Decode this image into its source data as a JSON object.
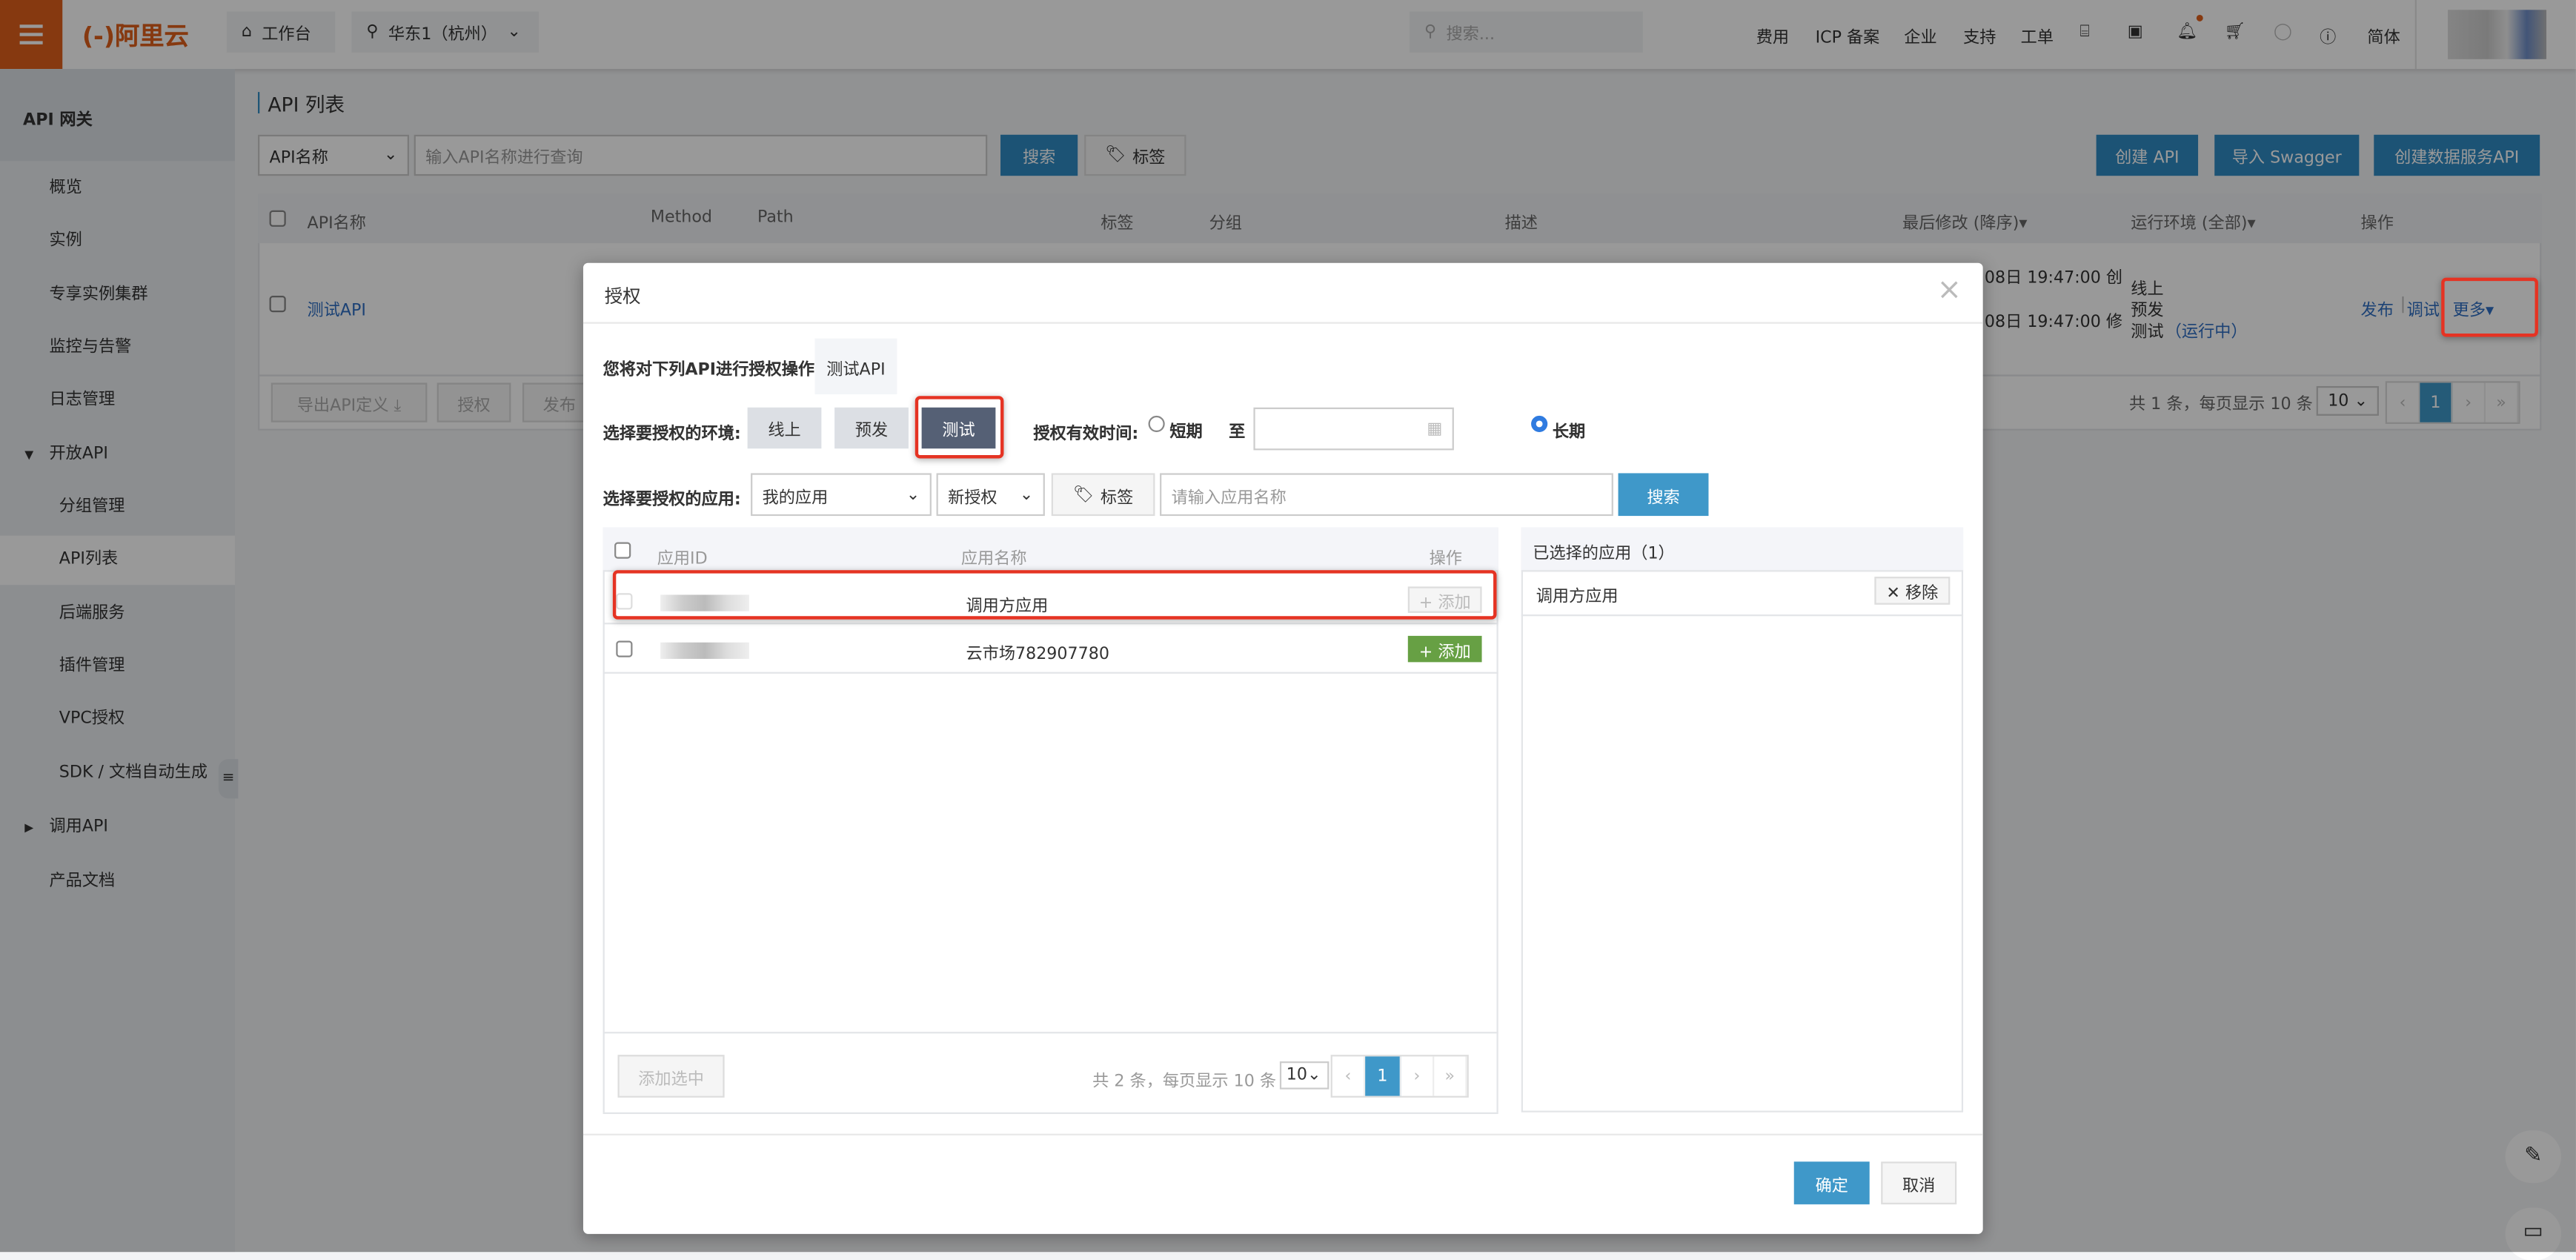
{
  "topbar": {
    "logo": "(-)阿里云",
    "workbench": "工作台",
    "region": "华东1（杭州）",
    "search_placeholder": "搜索...",
    "nav": [
      "费用",
      "ICP 备案",
      "企业",
      "支持",
      "工单"
    ],
    "lang": "简体"
  },
  "sidebar": {
    "title": "API 网关",
    "items": [
      "概览",
      "实例",
      "专享实例集群",
      "监控与告警",
      "日志管理",
      "开放API",
      "分组管理",
      "API列表",
      "后端服务",
      "插件管理",
      "VPC授权",
      "SDK / 文档自动生成",
      "调用API",
      "产品文档"
    ]
  },
  "main": {
    "title": "API 列表",
    "filter_select": "API名称",
    "search_placeholder": "输入API名称进行查询",
    "search": "搜索",
    "tag": "标签",
    "create_api": "创建 API",
    "import_swagger": "导入 Swagger",
    "create_data_api": "创建数据服务API",
    "columns": [
      "API名称",
      "Method",
      "Path",
      "标签",
      "分组",
      "描述",
      "最后修改 (降序)▾",
      "运行环境 (全部)▾",
      "操作"
    ],
    "row": {
      "name": "测试API",
      "time1": "08日 19:47:00 创",
      "time2": "08日 19:47:00 修",
      "env": [
        "线上",
        "预发",
        "测试"
      ],
      "running": "（运行中）",
      "actions": [
        "发布",
        "调试",
        "更多▾"
      ]
    },
    "footer_buttons": [
      "导出API定义 ⤓",
      "授权",
      "发布"
    ],
    "pagination_text": "共 1 条，每页显示 10 条",
    "page_size": "10",
    "page": "1"
  },
  "modal": {
    "title": "授权",
    "intro_label": "您将对下列API进行授权操作:",
    "api_tag": "测试API",
    "env_label": "选择要授权的环境:",
    "envs": [
      "线上",
      "预发",
      "测试"
    ],
    "selected_env": "测试",
    "validity_label": "授权有效时间:",
    "short": "短期",
    "to": "至",
    "long": "长期",
    "validity_selected": "长期",
    "app_label": "选择要授权的应用:",
    "app_scope": "我的应用",
    "auth_type": "新授权",
    "tag": "标签",
    "app_placeholder": "请输入应用名称",
    "search": "搜索",
    "table": {
      "columns": [
        "应用ID",
        "应用名称",
        "操作"
      ],
      "rows": [
        {
          "name": "调用方应用",
          "action": "+ 添加",
          "disabled": true
        },
        {
          "name": "云市场782907780",
          "action": "+ 添加",
          "disabled": false
        }
      ],
      "add_selected": "添加选中",
      "pagination_text": "共 2 条，每页显示 10 条",
      "page_size": "10",
      "page": "1"
    },
    "selected": {
      "title": "已选择的应用（1）",
      "items": [
        {
          "name": "调用方应用",
          "remove": "✕ 移除"
        }
      ]
    },
    "ok": "确定",
    "cancel": "取消"
  },
  "colors": {
    "accent": "#2f8bc4",
    "brand": "#e0601b",
    "highlight": "#e53323",
    "add_green": "#67a044",
    "selected_env": "#556075"
  }
}
